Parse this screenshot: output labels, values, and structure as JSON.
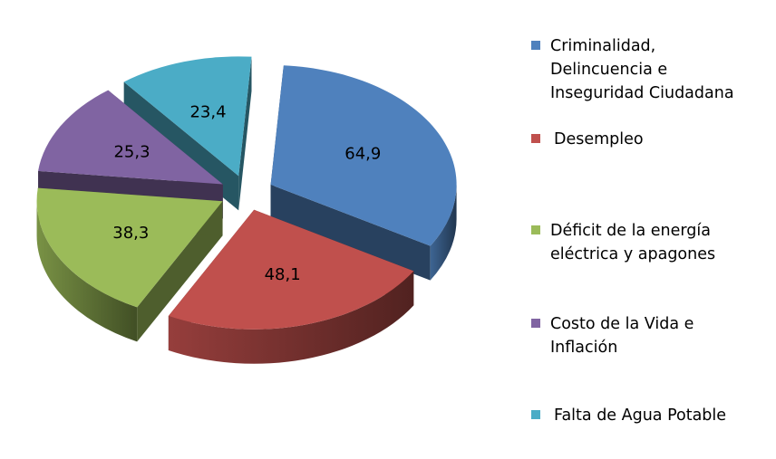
{
  "chart_data": {
    "type": "pie",
    "three_d": true,
    "exploded": true,
    "categories": [
      "Criminalidad,\nDelincuencia e\nInseguridad Ciudadana",
      "Desempleo",
      "Déficit de la energía\neléctrica y apagones",
      "Costo de la Vida e\nInflación",
      "Falta de Agua Potable"
    ],
    "values": [
      64.9,
      48.1,
      38.3,
      25.3,
      23.4
    ],
    "data_labels": [
      "64,9",
      "48,1",
      "38,3",
      "25,3",
      "23,4"
    ],
    "colors": [
      "#4F81BD",
      "#C0504D",
      "#9BBB59",
      "#8064A2",
      "#4BACC6"
    ],
    "legend_position": "right",
    "title": ""
  }
}
